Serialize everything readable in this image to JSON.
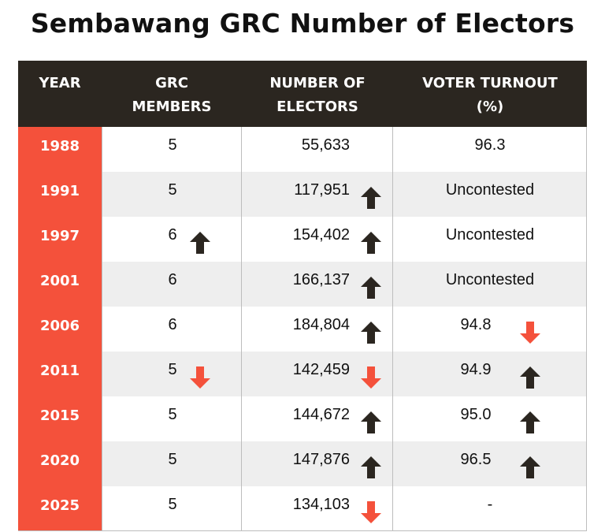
{
  "title": "Sembawang GRC  Number of Electors",
  "colors": {
    "header_bg": "#2b2620",
    "year_bg": "#f4513b",
    "up_arrow": "#2b2620",
    "down_arrow": "#f4513b",
    "row_alt": "#eeeeee"
  },
  "headers": {
    "year": "YEAR",
    "members": "GRC MEMBERS",
    "electors": "NUMBER OF ELECTORS",
    "turnout": "VOTER TURNOUT (%)"
  },
  "chart_data": {
    "type": "table",
    "title": "Sembawang GRC  Number of Electors",
    "columns": [
      "YEAR",
      "GRC MEMBERS",
      "NUMBER OF ELECTORS",
      "VOTER TURNOUT (%)"
    ],
    "rows": [
      {
        "year": "1988",
        "members": "5",
        "members_trend": "",
        "electors": "55,633",
        "electors_trend": "",
        "turnout": "96.3",
        "turnout_trend": ""
      },
      {
        "year": "1991",
        "members": "5",
        "members_trend": "",
        "electors": "117,951",
        "electors_trend": "up",
        "turnout": "Uncontested",
        "turnout_trend": ""
      },
      {
        "year": "1997",
        "members": "6",
        "members_trend": "up",
        "electors": "154,402",
        "electors_trend": "up",
        "turnout": "Uncontested",
        "turnout_trend": ""
      },
      {
        "year": "2001",
        "members": "6",
        "members_trend": "",
        "electors": "166,137",
        "electors_trend": "up",
        "turnout": "Uncontested",
        "turnout_trend": ""
      },
      {
        "year": "2006",
        "members": "6",
        "members_trend": "",
        "electors": "184,804",
        "electors_trend": "up",
        "turnout": "94.8",
        "turnout_trend": "down"
      },
      {
        "year": "2011",
        "members": "5",
        "members_trend": "down",
        "electors": "142,459",
        "electors_trend": "down",
        "turnout": "94.9",
        "turnout_trend": "up"
      },
      {
        "year": "2015",
        "members": "5",
        "members_trend": "",
        "electors": "144,672",
        "electors_trend": "up",
        "turnout": "95.0",
        "turnout_trend": "up"
      },
      {
        "year": "2020",
        "members": "5",
        "members_trend": "",
        "electors": "147,876",
        "electors_trend": "up",
        "turnout": "96.5",
        "turnout_trend": "up"
      },
      {
        "year": "2025",
        "members": "5",
        "members_trend": "",
        "electors": "134,103",
        "electors_trend": "down",
        "turnout": "-",
        "turnout_trend": ""
      }
    ]
  }
}
